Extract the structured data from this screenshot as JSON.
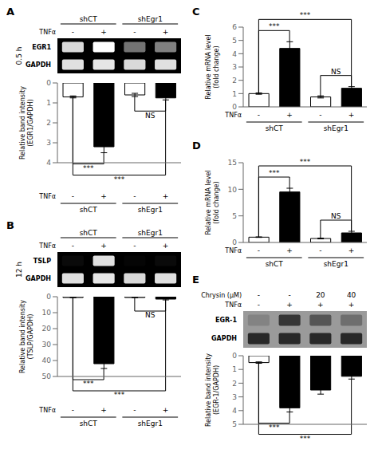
{
  "chart_data": [
    {
      "type": "heatmap",
      "title": "A",
      "ylabel": "0.5 h",
      "header": [
        {
          "label": "TNFα",
          "values": [
            "-",
            "+",
            "-",
            "+"
          ]
        }
      ],
      "groups": [
        "shCT",
        "shEgr1"
      ],
      "series": [
        {
          "name": "EGR1",
          "color": "white",
          "values": [
            0.85,
            1.0,
            0.45,
            0.5
          ]
        },
        {
          "name": "GAPDH",
          "color": "white",
          "values": [
            0.88,
            0.9,
            0.85,
            0.88
          ]
        }
      ]
    },
    {
      "type": "bar",
      "categories": [
        "-",
        "+",
        "-",
        "+"
      ],
      "xlabel": "TNFα",
      "groups": [
        "shCT",
        "shEgr1"
      ],
      "ylabel": "Relative band intensity\n(EGR1/GAPDH)",
      "values": [
        0.7,
        3.2,
        0.6,
        0.75
      ],
      "errors": [
        0.05,
        0.3,
        0.08,
        0.1
      ],
      "colors": [
        "white",
        "black",
        "white",
        "black"
      ],
      "ylim": [
        4,
        0
      ],
      "yticks": [
        0,
        1,
        2,
        3,
        4
      ],
      "annotations": [
        {
          "text": "***",
          "from": 0,
          "to": 1
        },
        {
          "text": "NS",
          "from": 2,
          "to": 3
        },
        {
          "text": "***",
          "from": 0,
          "to": 3
        }
      ]
    },
    {
      "type": "heatmap",
      "title": "B",
      "ylabel": "12 h",
      "header": [
        {
          "label": "TNFα",
          "values": [
            "-",
            "+",
            "-",
            "+"
          ]
        }
      ],
      "groups": [
        "shCT",
        "shEgr1"
      ],
      "series": [
        {
          "name": "TSLP",
          "color": "white",
          "values": [
            0.04,
            0.88,
            0.02,
            0.04
          ]
        },
        {
          "name": "GAPDH",
          "color": "white",
          "values": [
            0.88,
            0.9,
            0.85,
            0.88
          ]
        }
      ]
    },
    {
      "type": "bar",
      "categories": [
        "-",
        "+",
        "-",
        "+"
      ],
      "xlabel": "TNFα",
      "groups": [
        "shCT",
        "shEgr1"
      ],
      "ylabel": "Relative band intensity\n(TSLP/GAPDH)",
      "values": [
        0.5,
        42.0,
        0.5,
        1.5
      ],
      "errors": [
        0.1,
        3.0,
        0.1,
        0.5
      ],
      "colors": [
        "white",
        "black",
        "white",
        "black"
      ],
      "ylim": [
        50,
        0
      ],
      "yticks": [
        0,
        10,
        20,
        30,
        40,
        50
      ],
      "annotations": [
        {
          "text": "***",
          "from": 0,
          "to": 1
        },
        {
          "text": "NS",
          "from": 2,
          "to": 3
        },
        {
          "text": "***",
          "from": 0,
          "to": 3
        }
      ]
    },
    {
      "type": "bar",
      "title": "C",
      "categories": [
        "-",
        "+",
        "-",
        "+"
      ],
      "xlabel": "TNFα",
      "groups": [
        "shCT",
        "shEgr1"
      ],
      "ylabel": "Relative mRNA level\n(fold change)",
      "values": [
        1.0,
        4.4,
        0.75,
        1.4
      ],
      "errors": [
        0.05,
        0.5,
        0.08,
        0.12
      ],
      "colors": [
        "white",
        "black",
        "white",
        "black"
      ],
      "ylim": [
        0,
        6
      ],
      "yticks": [
        0,
        1,
        2,
        3,
        4,
        5,
        6
      ],
      "annotations": [
        {
          "text": "***",
          "from": 0,
          "to": 1
        },
        {
          "text": "NS",
          "from": 2,
          "to": 3
        },
        {
          "text": "***",
          "from": 0,
          "to": 3
        }
      ]
    },
    {
      "type": "bar",
      "title": "D",
      "categories": [
        "-",
        "+",
        "-",
        "+"
      ],
      "xlabel": "TNFα",
      "groups": [
        "shCT",
        "shEgr1"
      ],
      "ylabel": "Relative mRNA level\n(fold change)",
      "values": [
        1.0,
        9.5,
        0.75,
        1.8
      ],
      "errors": [
        0.05,
        0.7,
        0.08,
        0.3
      ],
      "colors": [
        "white",
        "black",
        "white",
        "black"
      ],
      "ylim": [
        0,
        15
      ],
      "yticks": [
        0,
        5,
        10,
        15
      ],
      "annotations": [
        {
          "text": "***",
          "from": 0,
          "to": 1
        },
        {
          "text": "NS",
          "from": 2,
          "to": 3
        },
        {
          "text": "***",
          "from": 0,
          "to": 3
        }
      ]
    },
    {
      "type": "heatmap",
      "title": "E",
      "header": [
        {
          "label": "Chrysin (μM)",
          "values": [
            "-",
            "-",
            "20",
            "40"
          ]
        },
        {
          "label": "TNFα",
          "values": [
            "-",
            "+",
            "+",
            "+"
          ]
        }
      ],
      "series": [
        {
          "name": "EGR-1",
          "color": "#282828",
          "values": [
            0.2,
            0.88,
            0.6,
            0.38
          ]
        },
        {
          "name": "GAPDH",
          "color": "#181818",
          "values": [
            0.88,
            0.88,
            0.88,
            0.88
          ]
        }
      ]
    },
    {
      "type": "bar",
      "ylabel": "Relative band intensity\n(EGR-1/GAPDH)",
      "values": [
        0.5,
        3.8,
        2.5,
        1.5
      ],
      "errors": [
        0.05,
        0.3,
        0.3,
        0.2
      ],
      "colors": [
        "white",
        "black",
        "black",
        "black"
      ],
      "ylim": [
        5,
        0
      ],
      "yticks": [
        0,
        1,
        2,
        3,
        4,
        5
      ],
      "annotations": [
        {
          "text": "***",
          "from": 0,
          "to": 1
        },
        {
          "text": "***",
          "from": 0,
          "to": 3
        }
      ]
    }
  ]
}
